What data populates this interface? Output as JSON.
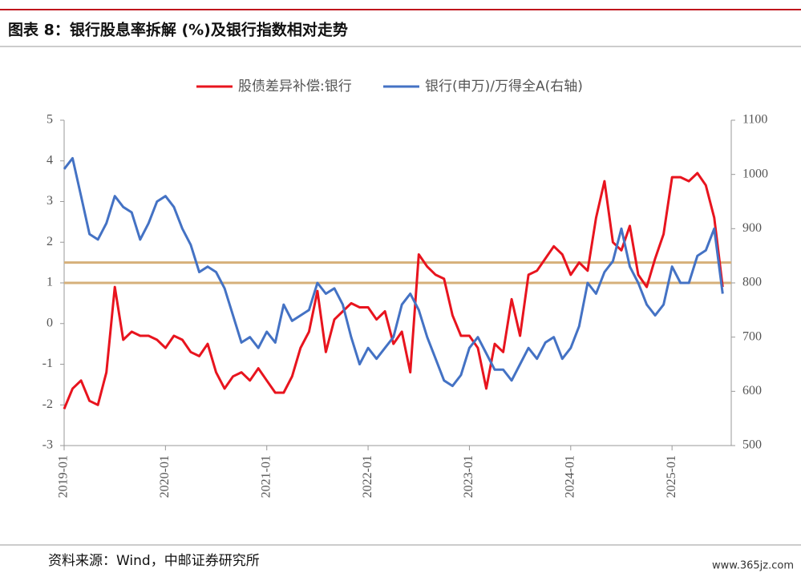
{
  "chart_data": {
    "type": "line",
    "title": "图表 8：银行股息率拆解 (%)及银行指数相对走势",
    "source": "资料来源：Wind，中邮证券研究所",
    "watermark": "www.365jz.com",
    "x": [
      "2019-01",
      "2019-02",
      "2019-03",
      "2019-04",
      "2019-05",
      "2019-06",
      "2019-07",
      "2019-08",
      "2019-09",
      "2019-10",
      "2019-11",
      "2019-12",
      "2020-01",
      "2020-02",
      "2020-03",
      "2020-04",
      "2020-05",
      "2020-06",
      "2020-07",
      "2020-08",
      "2020-09",
      "2020-10",
      "2020-11",
      "2020-12",
      "2021-01",
      "2021-02",
      "2021-03",
      "2021-04",
      "2021-05",
      "2021-06",
      "2021-07",
      "2021-08",
      "2021-09",
      "2021-10",
      "2021-11",
      "2021-12",
      "2022-01",
      "2022-02",
      "2022-03",
      "2022-04",
      "2022-05",
      "2022-06",
      "2022-07",
      "2022-08",
      "2022-09",
      "2022-10",
      "2022-11",
      "2022-12",
      "2023-01",
      "2023-02",
      "2023-03",
      "2023-04",
      "2023-05",
      "2023-06",
      "2023-07",
      "2023-08",
      "2023-09",
      "2023-10",
      "2023-11",
      "2023-12",
      "2024-01",
      "2024-02",
      "2024-03",
      "2024-04",
      "2024-05",
      "2024-06",
      "2024-07",
      "2024-08",
      "2024-09",
      "2024-10",
      "2024-11",
      "2024-12",
      "2025-01",
      "2025-02",
      "2025-03",
      "2025-04",
      "2025-05",
      "2025-06",
      "2025-07"
    ],
    "xtick_every": 12,
    "series": [
      {
        "name": "股债差异补偿:银行",
        "color": "#e8141e",
        "values": [
          -2.1,
          -1.6,
          -1.4,
          -1.9,
          -2.0,
          -1.2,
          0.9,
          -0.4,
          -0.2,
          -0.3,
          -0.3,
          -0.4,
          -0.6,
          -0.3,
          -0.4,
          -0.7,
          -0.8,
          -0.5,
          -1.2,
          -1.6,
          -1.3,
          -1.2,
          -1.4,
          -1.1,
          -1.4,
          -1.7,
          -1.7,
          -1.3,
          -0.6,
          -0.2,
          0.8,
          -0.7,
          0.1,
          0.3,
          0.5,
          0.4,
          0.4,
          0.1,
          0.3,
          -0.5,
          -0.2,
          -1.2,
          1.7,
          1.4,
          1.2,
          1.1,
          0.2,
          -0.3,
          -0.3,
          -0.6,
          -1.6,
          -0.5,
          -0.7,
          0.6,
          -0.3,
          1.2,
          1.3,
          1.6,
          1.9,
          1.7,
          1.2,
          1.5,
          1.3,
          2.6,
          3.5,
          2.0,
          1.8,
          2.4,
          1.2,
          0.9,
          1.6,
          2.2,
          3.6,
          3.6,
          3.5,
          3.7,
          3.4,
          2.6,
          0.9
        ]
      },
      {
        "name": "银行(申万)/万得全A(右轴)",
        "color": "#4472c4",
        "axis": "y2",
        "values": [
          1010,
          1030,
          960,
          890,
          880,
          910,
          960,
          940,
          930,
          880,
          910,
          950,
          960,
          940,
          900,
          870,
          820,
          830,
          820,
          790,
          740,
          690,
          700,
          680,
          710,
          690,
          760,
          730,
          740,
          750,
          800,
          780,
          790,
          760,
          700,
          650,
          680,
          660,
          680,
          700,
          760,
          780,
          750,
          700,
          660,
          620,
          610,
          630,
          680,
          700,
          670,
          640,
          640,
          620,
          650,
          680,
          660,
          690,
          700,
          660,
          680,
          720,
          800,
          780,
          820,
          840,
          900,
          830,
          800,
          760,
          740,
          760,
          830,
          800,
          800,
          850,
          860,
          900,
          780
        ]
      }
    ],
    "ylim": [
      -3,
      5
    ],
    "yticks": [
      -3,
      -2,
      -1,
      0,
      1,
      2,
      3,
      4,
      5
    ],
    "y2lim": [
      500,
      1100
    ],
    "y2ticks": [
      500,
      600,
      700,
      800,
      900,
      1000,
      1100
    ],
    "hlines": [
      1,
      1.5
    ],
    "hline_color": "#d6b07a"
  }
}
